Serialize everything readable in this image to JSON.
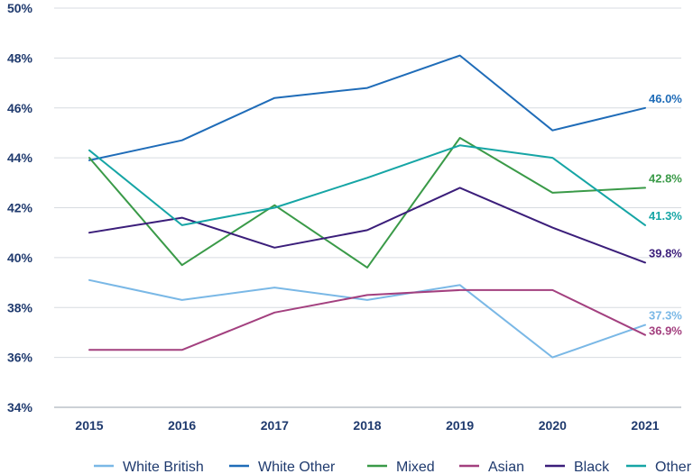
{
  "chart_data": {
    "type": "line",
    "title": "",
    "xlabel": "",
    "ylabel": "",
    "x": [
      "2015",
      "2016",
      "2017",
      "2018",
      "2019",
      "2020",
      "2021"
    ],
    "ylim": [
      34,
      50
    ],
    "yticks": [
      34,
      36,
      38,
      40,
      42,
      44,
      46,
      48,
      50
    ],
    "ytick_labels": [
      "34%",
      "36%",
      "38%",
      "40%",
      "42%",
      "44%",
      "46%",
      "48%",
      "50%"
    ],
    "grid": "horizontal",
    "legend_position": "bottom",
    "series": [
      {
        "name": "White British",
        "color": "#7ab8e6",
        "values": [
          39.1,
          38.3,
          38.8,
          38.3,
          38.9,
          36.0,
          37.3
        ],
        "end_label": "37.3%"
      },
      {
        "name": "White Other",
        "color": "#1f6cb8",
        "values": [
          43.9,
          44.7,
          46.4,
          46.8,
          48.1,
          45.1,
          46.0
        ],
        "end_label": "46.0%"
      },
      {
        "name": "Mixed",
        "color": "#3a9a48",
        "values": [
          44.0,
          39.7,
          42.1,
          39.6,
          44.8,
          42.6,
          42.8
        ],
        "end_label": "42.8%"
      },
      {
        "name": "Asian",
        "color": "#a3407f",
        "values": [
          36.3,
          36.3,
          37.8,
          38.5,
          38.7,
          38.7,
          36.9
        ],
        "end_label": "36.9%"
      },
      {
        "name": "Black",
        "color": "#3b1e7a",
        "values": [
          41.0,
          41.6,
          40.4,
          41.1,
          42.8,
          41.2,
          39.8
        ],
        "end_label": "39.8%"
      },
      {
        "name": "Other",
        "color": "#16a5a5",
        "values": [
          44.3,
          41.3,
          42.0,
          43.2,
          44.5,
          44.0,
          41.3
        ],
        "end_label": "41.3%"
      }
    ]
  }
}
